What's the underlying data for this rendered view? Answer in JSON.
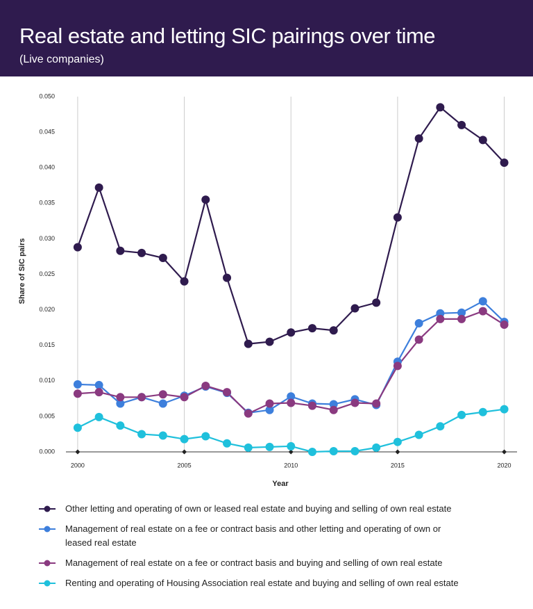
{
  "chart_data": {
    "type": "line",
    "title": "Real estate and letting SIC pairings over time",
    "subtitle": "(Live companies)",
    "x_label": "Year",
    "y_label": "Share of SIC pairs",
    "x": [
      2000,
      2001,
      2002,
      2003,
      2004,
      2005,
      2006,
      2007,
      2008,
      2009,
      2010,
      2011,
      2012,
      2013,
      2014,
      2015,
      2016,
      2017,
      2018,
      2019,
      2020
    ],
    "series": [
      {
        "name": "Other letting and operating of own or leased real estate and buying and selling of own real estate",
        "color": "#2f1b4e",
        "values": [
          0.0288,
          0.0372,
          0.0283,
          0.028,
          0.0273,
          0.024,
          0.0355,
          0.0245,
          0.0152,
          0.0155,
          0.0168,
          0.0174,
          0.0171,
          0.0202,
          0.021,
          0.033,
          0.0441,
          0.0485,
          0.046,
          0.0439,
          0.0407
        ]
      },
      {
        "name": "Management of real estate on a fee or contract basis and other letting and operating of own or leased real estate",
        "color": "#3d7fdc",
        "values": [
          0.0095,
          0.0094,
          0.0068,
          0.0077,
          0.0068,
          0.0079,
          0.0092,
          0.0083,
          0.0055,
          0.0059,
          0.0078,
          0.0068,
          0.0067,
          0.0074,
          0.0066,
          0.0127,
          0.0181,
          0.0195,
          0.0196,
          0.0212,
          0.0183
        ]
      },
      {
        "name": "Management of real estate on a fee or contract basis and buying and selling of own real estate",
        "color": "#8a3a80",
        "values": [
          0.0082,
          0.0084,
          0.0077,
          0.0077,
          0.0081,
          0.0077,
          0.0093,
          0.0084,
          0.0054,
          0.0068,
          0.0069,
          0.0065,
          0.0059,
          0.0069,
          0.0068,
          0.0121,
          0.0158,
          0.0187,
          0.0187,
          0.0198,
          0.0179
        ]
      },
      {
        "name": "Renting and operating of Housing Association real estate and buying and selling of own real estate",
        "color": "#1fc0dc",
        "values": [
          0.0034,
          0.0049,
          0.0037,
          0.0025,
          0.0023,
          0.0018,
          0.0022,
          0.0012,
          0.0006,
          0.0007,
          0.0008,
          0.0,
          0.0001,
          0.0001,
          0.0006,
          0.0014,
          0.0024,
          0.0036,
          0.0052,
          0.0056,
          0.006
        ]
      }
    ],
    "xlim": [
      1999.45,
      2020.6
    ],
    "xticks": [
      2000,
      2005,
      2010,
      2015,
      2020
    ],
    "ylim": [
      0,
      0.05
    ],
    "yticks": [
      {
        "value": 0,
        "label": "0.000"
      },
      {
        "value": 0.005,
        "label": "0.005"
      },
      {
        "value": 0.01,
        "label": "0.010"
      },
      {
        "value": 0.015,
        "label": "0.015"
      },
      {
        "value": 0.02,
        "label": "0.020"
      },
      {
        "value": 0.025,
        "label": "0.025"
      },
      {
        "value": 0.03,
        "label": "0.030"
      },
      {
        "value": 0.035,
        "label": "0.035"
      },
      {
        "value": 0.04,
        "label": "0.040"
      },
      {
        "value": 0.045,
        "label": "0.045"
      },
      {
        "value": 0.05,
        "label": "0.050"
      }
    ],
    "grid": "x",
    "legend": "bottom"
  }
}
